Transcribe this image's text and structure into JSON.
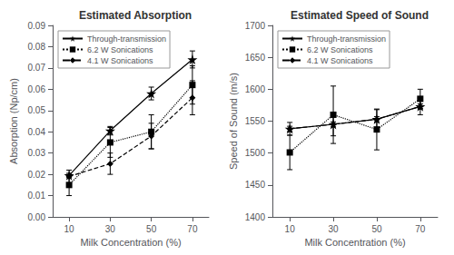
{
  "chart_data": [
    {
      "type": "line",
      "title": "Estimated Absorption",
      "xlabel": "Milk Concentration (%)",
      "ylabel": "Absorption (Np/cm)",
      "x": [
        10,
        30,
        50,
        70
      ],
      "xlim": [
        2,
        78
      ],
      "xticks": [
        10,
        30,
        50,
        70
      ],
      "ylim": [
        0,
        0.09
      ],
      "yticks": [
        {
          "value": 0,
          "label": "0.00"
        },
        0.01,
        0.02,
        0.03,
        0.04,
        0.05,
        0.06,
        0.07,
        0.08,
        0.09
      ],
      "grid": false,
      "legend": "upper left",
      "series": [
        {
          "name": "Through-transmission",
          "color": "black",
          "marker": "star",
          "line_style": "solid",
          "values": [
            0.0195,
            0.0405,
            0.058,
            0.074
          ],
          "errors": [
            0.001,
            0.002,
            0.003,
            0.004
          ]
        },
        {
          "name": "6.2 W Sonications",
          "color": "black",
          "marker": "square",
          "line_style": "dotted",
          "values": [
            0.015,
            0.035,
            0.04,
            0.062
          ],
          "errors": [
            0.005,
            0.007,
            0.008,
            0.009
          ]
        },
        {
          "name": "4.1 W Sonications",
          "color": "black",
          "marker": "diamond",
          "line_style": "dashed",
          "values": [
            0.019,
            0.025,
            0.038,
            0.056
          ],
          "errors": [
            0.003,
            0.005,
            0.006,
            0.008
          ]
        }
      ]
    },
    {
      "type": "line",
      "title": "Estimated Speed of Sound",
      "xlabel": "Milk Concentration (%)",
      "ylabel": "Speed of Sound (m/s)",
      "x": [
        10,
        30,
        50,
        70
      ],
      "xlim": [
        2,
        78
      ],
      "xticks": [
        10,
        30,
        50,
        70
      ],
      "ylim": [
        1400,
        1700
      ],
      "yticks": [
        1400,
        1450,
        1500,
        1550,
        1600,
        1650,
        1700
      ],
      "grid": false,
      "legend": "upper left",
      "series": [
        {
          "name": "Through-transmission",
          "color": "black",
          "marker": "star",
          "line_style": "solid",
          "values": [
            1538,
            1545,
            1553,
            1573
          ],
          "errors": [
            4,
            4,
            4,
            4
          ]
        },
        {
          "name": "6.2 W Sonications",
          "color": "black",
          "marker": "square",
          "line_style": "dotted",
          "values": [
            1501,
            1560,
            1537,
            1585
          ],
          "errors": [
            27,
            45,
            32,
            15
          ]
        },
        {
          "name": "4.1 W Sonications",
          "color": "black",
          "marker": "diamond",
          "line_style": "dashed",
          "values": [
            1538,
            1545,
            1553,
            1573
          ],
          "errors": [
            10,
            18,
            15,
            13
          ]
        }
      ]
    }
  ]
}
